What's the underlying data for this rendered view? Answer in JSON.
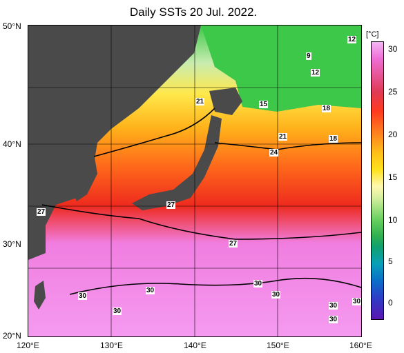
{
  "title": "Daily SSTs 20 Jul. 2022.",
  "lat_labels": [
    "50°N",
    "40°N",
    "30°N",
    "20°N"
  ],
  "lon_labels": [
    "120°E",
    "130°E",
    "140°E",
    "150°E",
    "160°E"
  ],
  "colorbar": {
    "unit": "[°C]",
    "ticks": [
      "30",
      "25",
      "20",
      "15",
      "10",
      "5",
      "0"
    ]
  },
  "contour_labels": [
    "12",
    "9",
    "12",
    "21",
    "15",
    "18",
    "21",
    "18",
    "24",
    "27",
    "27",
    "27",
    "30",
    "30",
    "30",
    "30",
    "30",
    "30",
    "30",
    "30"
  ],
  "colors": {
    "land": "#4a4a4a",
    "warm_pink": "#f07ee0",
    "red": "#ee2a1e",
    "orange": "#ff8a1a",
    "yellow": "#ffd21a",
    "green": "#3ec84a"
  }
}
